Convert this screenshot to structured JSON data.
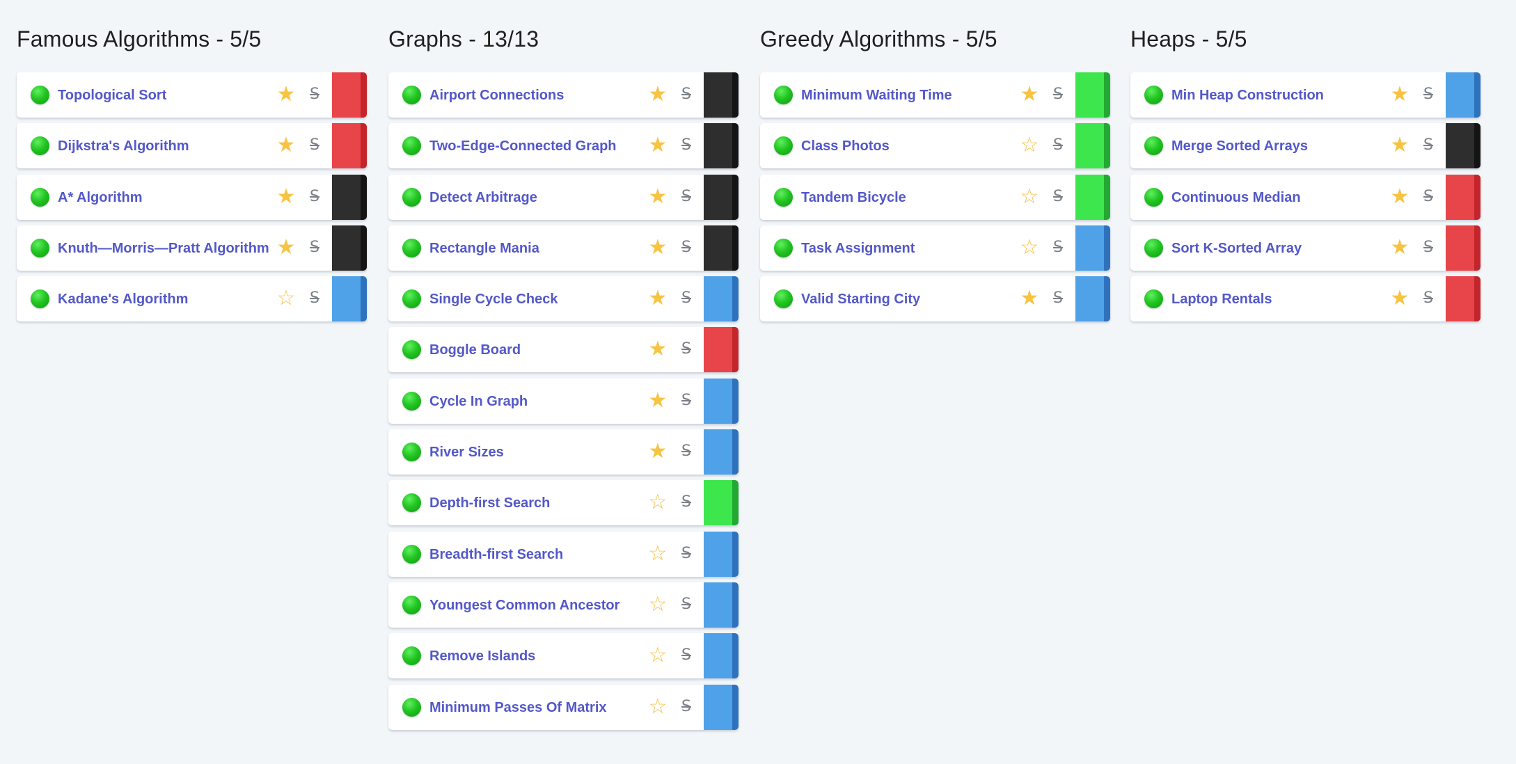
{
  "columns": [
    {
      "title": "Famous Algorithms - 5/5",
      "items": [
        {
          "name": "Topological Sort",
          "starred": true,
          "color": "red"
        },
        {
          "name": "Dijkstra's Algorithm",
          "starred": true,
          "color": "red"
        },
        {
          "name": "A* Algorithm",
          "starred": true,
          "color": "black"
        },
        {
          "name": "Knuth—Morris—Pratt Algorithm",
          "starred": true,
          "color": "black"
        },
        {
          "name": "Kadane's Algorithm",
          "starred": false,
          "color": "blue"
        }
      ]
    },
    {
      "title": "Graphs - 13/13",
      "items": [
        {
          "name": "Airport Connections",
          "starred": true,
          "color": "black"
        },
        {
          "name": "Two-Edge-Connected Graph",
          "starred": true,
          "color": "black"
        },
        {
          "name": "Detect Arbitrage",
          "starred": true,
          "color": "black"
        },
        {
          "name": "Rectangle Mania",
          "starred": true,
          "color": "black"
        },
        {
          "name": "Single Cycle Check",
          "starred": true,
          "color": "blue"
        },
        {
          "name": "Boggle Board",
          "starred": true,
          "color": "red"
        },
        {
          "name": "Cycle In Graph",
          "starred": true,
          "color": "blue"
        },
        {
          "name": "River Sizes",
          "starred": true,
          "color": "blue"
        },
        {
          "name": "Depth-first Search",
          "starred": false,
          "color": "green"
        },
        {
          "name": "Breadth-first Search",
          "starred": false,
          "color": "blue"
        },
        {
          "name": "Youngest Common Ancestor",
          "starred": false,
          "color": "blue"
        },
        {
          "name": "Remove Islands",
          "starred": false,
          "color": "blue"
        },
        {
          "name": "Minimum Passes Of Matrix",
          "starred": false,
          "color": "blue"
        }
      ]
    },
    {
      "title": "Greedy Algorithms - 5/5",
      "items": [
        {
          "name": "Minimum Waiting Time",
          "starred": true,
          "color": "green"
        },
        {
          "name": "Class Photos",
          "starred": false,
          "color": "green"
        },
        {
          "name": "Tandem Bicycle",
          "starred": false,
          "color": "green"
        },
        {
          "name": "Task Assignment",
          "starred": false,
          "color": "blue"
        },
        {
          "name": "Valid Starting City",
          "starred": true,
          "color": "blue"
        }
      ]
    },
    {
      "title": "Heaps - 5/5",
      "items": [
        {
          "name": "Min Heap Construction",
          "starred": true,
          "color": "blue"
        },
        {
          "name": "Merge Sorted Arrays",
          "starred": true,
          "color": "black"
        },
        {
          "name": "Continuous Median",
          "starred": true,
          "color": "red"
        },
        {
          "name": "Sort K-Sorted Array",
          "starred": true,
          "color": "red"
        },
        {
          "name": "Laptop Rentals",
          "starred": true,
          "color": "red"
        }
      ]
    }
  ],
  "glyphs": {
    "star_filled": "★",
    "star_empty": "☆",
    "strike": "S"
  },
  "colors": {
    "red": "#e8454a",
    "black": "#2e2e2e",
    "blue": "#4fa1e8",
    "green": "#3de64c",
    "status_complete": "#22c522",
    "star": "#f7c342",
    "link": "#5358c8"
  },
  "icons": [
    "status-complete-icon",
    "star-icon",
    "strikethrough-icon"
  ]
}
